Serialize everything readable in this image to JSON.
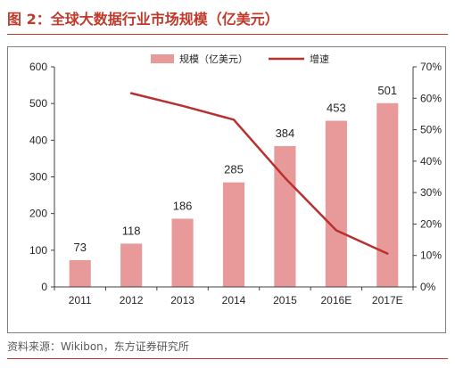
{
  "figure": {
    "title": "图 2：全球大数据行业市场规模（亿美元）",
    "source": "资料来源：Wikibon，东方证券研究所"
  },
  "chart_data": {
    "type": "bar",
    "categories": [
      "2011",
      "2012",
      "2013",
      "2014",
      "2015",
      "2016E",
      "2017E"
    ],
    "series": [
      {
        "name": "规模（亿美元）",
        "type": "bar",
        "axis": "left",
        "values": [
          73,
          118,
          186,
          285,
          384,
          453,
          501
        ],
        "color": "#e8999a"
      },
      {
        "name": "增速",
        "type": "line",
        "axis": "right",
        "values": [
          null,
          0.616,
          0.576,
          0.532,
          0.347,
          0.18,
          0.106
        ],
        "color": "#b8312f"
      }
    ],
    "data_labels": [
      "73",
      "118",
      "186",
      "285",
      "384",
      "453",
      "501"
    ],
    "y_left": {
      "min": 0,
      "max": 600,
      "ticks": [
        0,
        100,
        200,
        300,
        400,
        500,
        600
      ]
    },
    "y_right": {
      "min": 0,
      "max": 0.7,
      "ticks": [
        0,
        0.1,
        0.2,
        0.3,
        0.4,
        0.5,
        0.6,
        0.7
      ],
      "tick_labels": [
        "0%",
        "10%",
        "20%",
        "30%",
        "40%",
        "50%",
        "60%",
        "70%"
      ]
    },
    "grid": false,
    "legend_position": "top-center"
  }
}
